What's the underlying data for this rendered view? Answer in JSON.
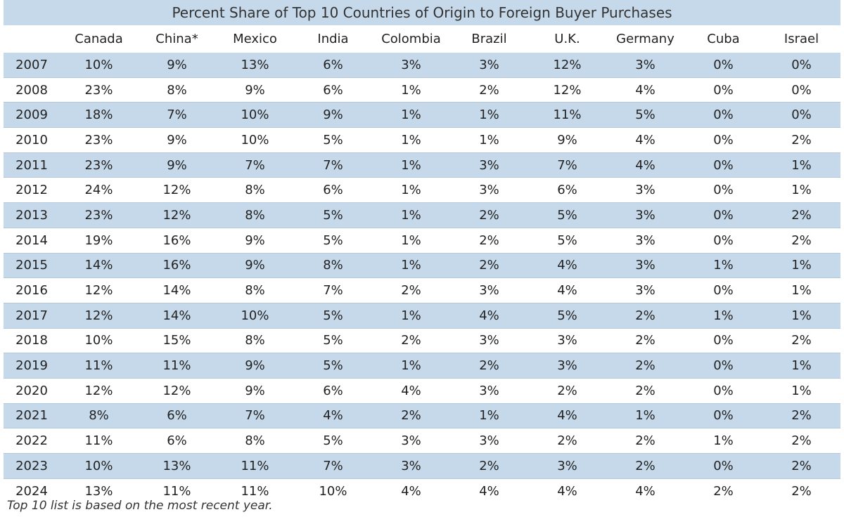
{
  "chart_data": {
    "type": "table",
    "title": "Percent Share of Top 10 Countries of Origin to Foreign Buyer Purchases",
    "columns": [
      "",
      "Canada",
      "China*",
      "Mexico",
      "India",
      "Colombia",
      "Brazil",
      "U.K.",
      "Germany",
      "Cuba",
      "Israel"
    ],
    "rows": [
      {
        "year": "2007",
        "values": [
          "10%",
          "9%",
          "13%",
          "6%",
          "3%",
          "3%",
          "12%",
          "3%",
          "0%",
          "0%"
        ]
      },
      {
        "year": "2008",
        "values": [
          "23%",
          "8%",
          "9%",
          "6%",
          "1%",
          "2%",
          "12%",
          "4%",
          "0%",
          "0%"
        ]
      },
      {
        "year": "2009",
        "values": [
          "18%",
          "7%",
          "10%",
          "9%",
          "1%",
          "1%",
          "11%",
          "5%",
          "0%",
          "0%"
        ]
      },
      {
        "year": "2010",
        "values": [
          "23%",
          "9%",
          "10%",
          "5%",
          "1%",
          "1%",
          "9%",
          "4%",
          "0%",
          "2%"
        ]
      },
      {
        "year": "2011",
        "values": [
          "23%",
          "9%",
          "7%",
          "7%",
          "1%",
          "3%",
          "7%",
          "4%",
          "0%",
          "1%"
        ]
      },
      {
        "year": "2012",
        "values": [
          "24%",
          "12%",
          "8%",
          "6%",
          "1%",
          "3%",
          "6%",
          "3%",
          "0%",
          "1%"
        ]
      },
      {
        "year": "2013",
        "values": [
          "23%",
          "12%",
          "8%",
          "5%",
          "1%",
          "2%",
          "5%",
          "3%",
          "0%",
          "2%"
        ]
      },
      {
        "year": "2014",
        "values": [
          "19%",
          "16%",
          "9%",
          "5%",
          "1%",
          "2%",
          "5%",
          "3%",
          "0%",
          "2%"
        ]
      },
      {
        "year": "2015",
        "values": [
          "14%",
          "16%",
          "9%",
          "8%",
          "1%",
          "2%",
          "4%",
          "3%",
          "1%",
          "1%"
        ]
      },
      {
        "year": "2016",
        "values": [
          "12%",
          "14%",
          "8%",
          "7%",
          "2%",
          "3%",
          "4%",
          "3%",
          "0%",
          "1%"
        ]
      },
      {
        "year": "2017",
        "values": [
          "12%",
          "14%",
          "10%",
          "5%",
          "1%",
          "4%",
          "5%",
          "2%",
          "1%",
          "1%"
        ]
      },
      {
        "year": "2018",
        "values": [
          "10%",
          "15%",
          "8%",
          "5%",
          "2%",
          "3%",
          "3%",
          "2%",
          "0%",
          "2%"
        ]
      },
      {
        "year": "2019",
        "values": [
          "11%",
          "11%",
          "9%",
          "5%",
          "1%",
          "2%",
          "3%",
          "2%",
          "0%",
          "1%"
        ]
      },
      {
        "year": "2020",
        "values": [
          "12%",
          "12%",
          "9%",
          "6%",
          "4%",
          "3%",
          "2%",
          "2%",
          "0%",
          "1%"
        ]
      },
      {
        "year": "2021",
        "values": [
          "8%",
          "6%",
          "7%",
          "4%",
          "2%",
          "1%",
          "4%",
          "1%",
          "0%",
          "2%"
        ]
      },
      {
        "year": "2022",
        "values": [
          "11%",
          "6%",
          "8%",
          "5%",
          "3%",
          "3%",
          "2%",
          "2%",
          "1%",
          "2%"
        ]
      },
      {
        "year": "2023",
        "values": [
          "10%",
          "13%",
          "11%",
          "7%",
          "3%",
          "2%",
          "3%",
          "2%",
          "0%",
          "2%"
        ]
      },
      {
        "year": "2024",
        "values": [
          "13%",
          "11%",
          "11%",
          "10%",
          "4%",
          "4%",
          "4%",
          "4%",
          "2%",
          "2%"
        ]
      }
    ],
    "footnote": "Top 10 list is based on the most recent year."
  },
  "colors": {
    "band": "#c6d9ea",
    "text": "#222222"
  }
}
